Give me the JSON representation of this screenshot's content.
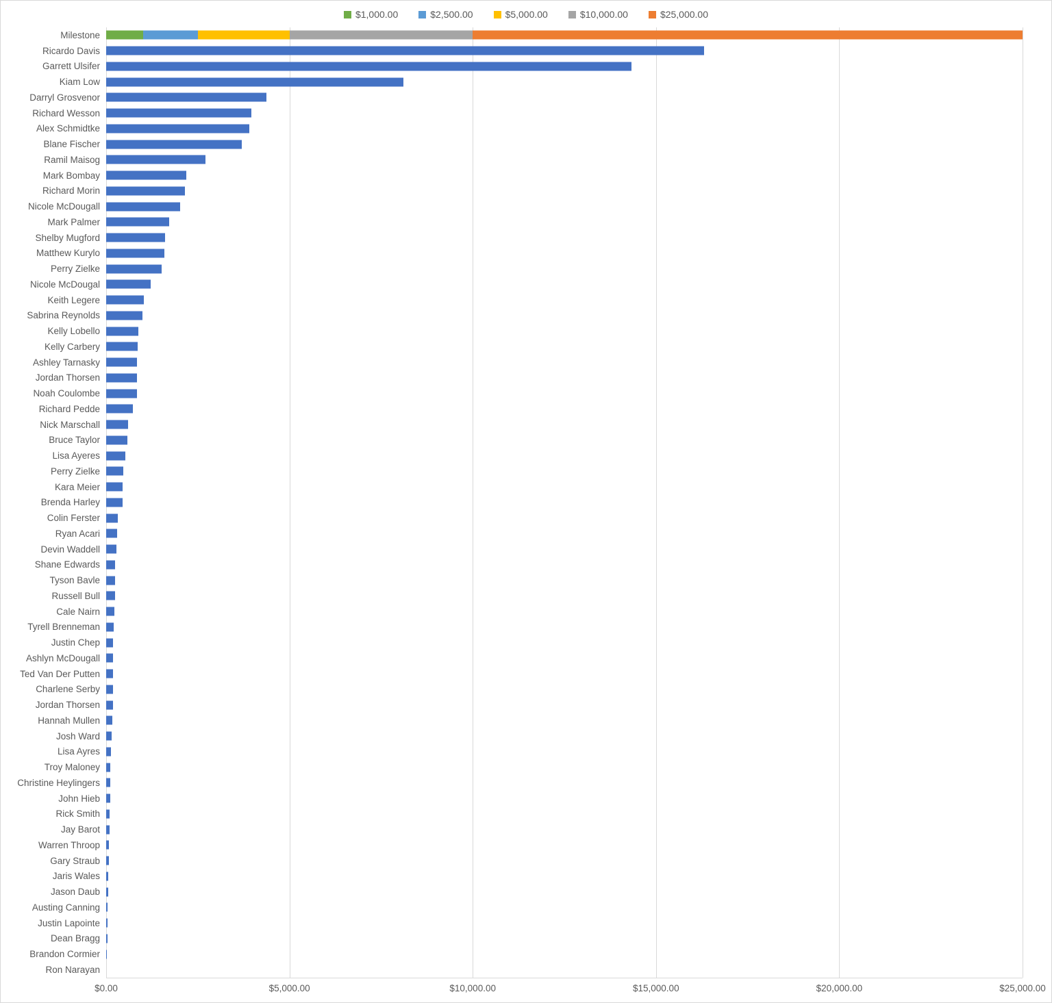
{
  "chart_data": {
    "type": "bar",
    "orientation": "horizontal",
    "title": "",
    "xlabel": "",
    "ylabel": "",
    "xlim": [
      0,
      25000
    ],
    "grid": "vertical",
    "legend_position": "top-center",
    "bar_color": "#4472c4",
    "legend": [
      {
        "label": "$1,000.00",
        "color": "#70ad47"
      },
      {
        "label": "$2,500.00",
        "color": "#5b9bd5"
      },
      {
        "label": "$5,000.00",
        "color": "#ffc000"
      },
      {
        "label": "$10,000.00",
        "color": "#a5a5a5"
      },
      {
        "label": "$25,000.00",
        "color": "#ed7d31"
      }
    ],
    "x_ticks": [
      {
        "label": "$0.00",
        "value": 0
      },
      {
        "label": "$5,000.00",
        "value": 5000
      },
      {
        "label": "$10,000.00",
        "value": 10000
      },
      {
        "label": "$15,000.00",
        "value": 15000
      },
      {
        "label": "$20,000.00",
        "value": 20000
      },
      {
        "label": "$25,000.00",
        "value": 25000
      }
    ],
    "milestone_row": {
      "label": "Milestone",
      "total": 25000,
      "segments": [
        {
          "series": "$1,000.00",
          "value": 1000,
          "color": "#70ad47"
        },
        {
          "series": "$2,500.00",
          "value": 1500,
          "color": "#5b9bd5"
        },
        {
          "series": "$5,000.00",
          "value": 2500,
          "color": "#ffc000"
        },
        {
          "series": "$10,000.00",
          "value": 5000,
          "color": "#a5a5a5"
        },
        {
          "series": "$25,000.00",
          "value": 15000,
          "color": "#ed7d31"
        }
      ]
    },
    "rows": [
      {
        "name": "Ricardo Davis",
        "value": 16310
      },
      {
        "name": "Garrett Ulsifer",
        "value": 14330
      },
      {
        "name": "Kiam Low",
        "value": 8110
      },
      {
        "name": "Darryl Grosvenor",
        "value": 4380
      },
      {
        "name": "Richard Wesson",
        "value": 3960
      },
      {
        "name": "Alex Schmidtke",
        "value": 3910
      },
      {
        "name": "Blane Fischer",
        "value": 3700
      },
      {
        "name": "Ramil Maisog",
        "value": 2710
      },
      {
        "name": "Mark Bombay",
        "value": 2190
      },
      {
        "name": "Richard Morin",
        "value": 2150
      },
      {
        "name": "Nicole McDougall",
        "value": 2010
      },
      {
        "name": "Mark Palmer",
        "value": 1720
      },
      {
        "name": "Shelby Mugford",
        "value": 1610
      },
      {
        "name": "Matthew Kurylo",
        "value": 1580
      },
      {
        "name": "Perry Zielke",
        "value": 1510
      },
      {
        "name": "Nicole McDougal",
        "value": 1220
      },
      {
        "name": "Keith Legere",
        "value": 1030
      },
      {
        "name": "Sabrina Reynolds",
        "value": 990
      },
      {
        "name": "Kelly Lobello",
        "value": 880
      },
      {
        "name": "Kelly Carbery",
        "value": 860
      },
      {
        "name": "Ashley Tarnasky",
        "value": 845
      },
      {
        "name": "Jordan Thorsen",
        "value": 840
      },
      {
        "name": "Noah Coulombe",
        "value": 835
      },
      {
        "name": "Richard Pedde",
        "value": 730
      },
      {
        "name": "Nick Marschall",
        "value": 590
      },
      {
        "name": "Bruce Taylor",
        "value": 580
      },
      {
        "name": "Lisa Ayeres",
        "value": 520
      },
      {
        "name": "Perry Zielke",
        "value": 462
      },
      {
        "name": "Kara Meier",
        "value": 455
      },
      {
        "name": "Brenda Harley",
        "value": 450
      },
      {
        "name": "Colin Ferster",
        "value": 320
      },
      {
        "name": "Ryan Acari",
        "value": 290
      },
      {
        "name": "Devin Waddell",
        "value": 280
      },
      {
        "name": "Shane Edwards",
        "value": 252
      },
      {
        "name": "Tyson Bavle",
        "value": 250
      },
      {
        "name": "Russell Bull",
        "value": 240
      },
      {
        "name": "Cale Nairn",
        "value": 230
      },
      {
        "name": "Tyrell Brenneman",
        "value": 200
      },
      {
        "name": "Justin Chep",
        "value": 195
      },
      {
        "name": "Ashlyn McDougall",
        "value": 193
      },
      {
        "name": "Ted Van Der Putten",
        "value": 192
      },
      {
        "name": "Charlene Serby",
        "value": 190
      },
      {
        "name": "Jordan Thorsen",
        "value": 185
      },
      {
        "name": "Hannah Mullen",
        "value": 160
      },
      {
        "name": "Josh Ward",
        "value": 150
      },
      {
        "name": "Lisa Ayres",
        "value": 130
      },
      {
        "name": "Troy Maloney",
        "value": 120
      },
      {
        "name": "Christine Heylingers",
        "value": 112
      },
      {
        "name": "John Hieb",
        "value": 110
      },
      {
        "name": "Rick Smith",
        "value": 95
      },
      {
        "name": "Jay Barot",
        "value": 90
      },
      {
        "name": "Warren Throop",
        "value": 72
      },
      {
        "name": "Gary Straub",
        "value": 70
      },
      {
        "name": "Jaris Wales",
        "value": 60
      },
      {
        "name": "Jason Daub",
        "value": 55
      },
      {
        "name": "Austing Canning",
        "value": 45
      },
      {
        "name": "Justin Lapointe",
        "value": 32
      },
      {
        "name": "Dean Bragg",
        "value": 30
      },
      {
        "name": "Brandon Cormier",
        "value": 25
      },
      {
        "name": "Ron Narayan",
        "value": 0
      }
    ]
  }
}
